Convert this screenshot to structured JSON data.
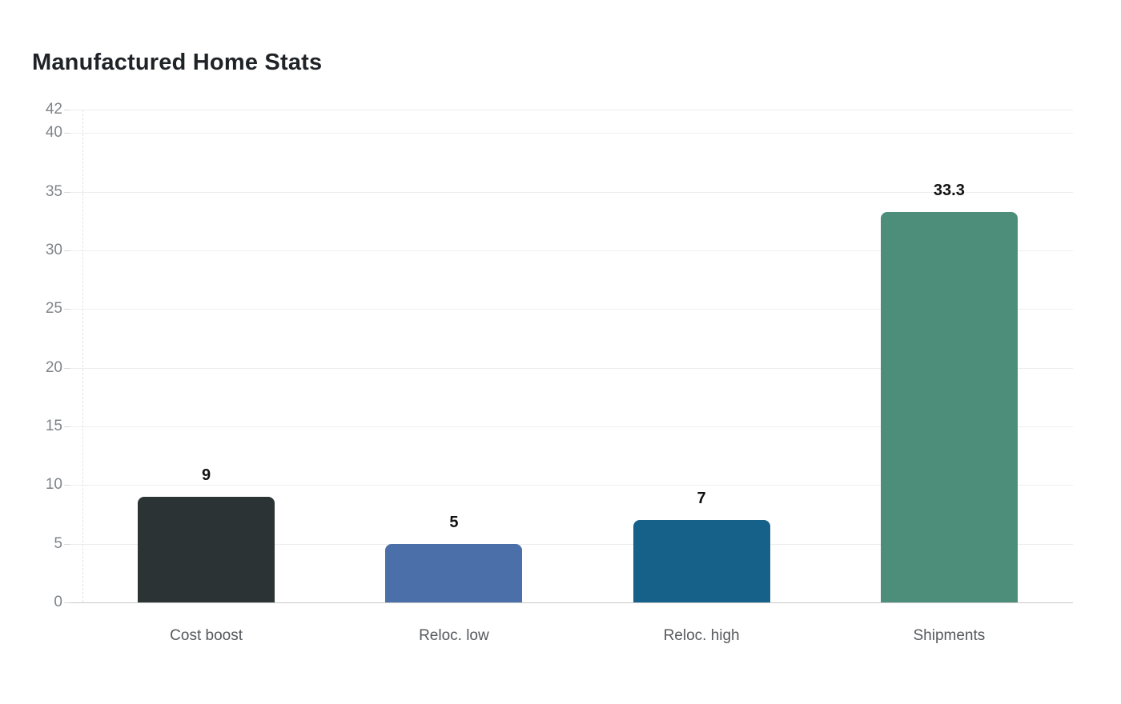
{
  "chart_data": {
    "type": "bar",
    "title": "Manufactured Home Stats",
    "categories": [
      "Cost boost",
      "Reloc. low",
      "Reloc. high",
      "Shipments"
    ],
    "values": [
      9,
      5,
      7,
      33.3
    ],
    "value_labels": [
      "9",
      "5",
      "7",
      "33.3"
    ],
    "bar_colors": [
      "#2b3335",
      "#4b6fa8",
      "#16618a",
      "#4d8e7b"
    ],
    "yticks": [
      0,
      5,
      10,
      15,
      20,
      25,
      30,
      35,
      40,
      42
    ],
    "ylim": [
      0,
      42
    ],
    "xlabel": "",
    "ylabel": "",
    "grid": true,
    "legend": false
  },
  "styles": {
    "background": "#ffffff",
    "title_color": "#1f2327",
    "gridline_color": "#ededed",
    "zero_line_color": "#c8c8c8",
    "tick_mark_color": "#d9d9d9",
    "y_tick_label_color": "#7f8489",
    "x_label_color": "#55585c",
    "value_label_color": "#111111",
    "plot_border_color": "#e2e2e2"
  }
}
